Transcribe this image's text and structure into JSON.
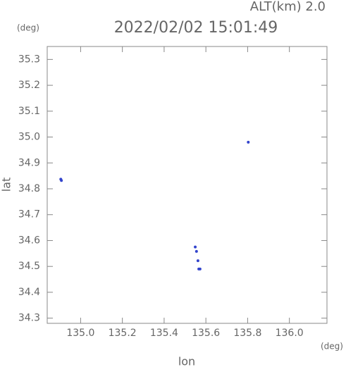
{
  "chart_data": {
    "type": "scatter",
    "title": "2022/02/02 15:01:49",
    "subtitle": "ALT(km) 2.0",
    "y_unit": "(deg)",
    "x_unit": "(deg)",
    "x_label": "lon",
    "y_label": "lat",
    "color": "#3344cc",
    "x": [
      134.905,
      134.908,
      135.803,
      135.549,
      135.555,
      135.562,
      135.566,
      135.572
    ],
    "values": [
      34.837,
      34.832,
      34.98,
      34.575,
      34.558,
      34.522,
      34.49,
      34.49
    ],
    "xlim": [
      134.84,
      136.18
    ],
    "ylim": [
      34.28,
      35.35
    ],
    "xticks": [
      {
        "value": 135,
        "label": "135.0"
      },
      135.2,
      135.4,
      135.6,
      135.8,
      {
        "value": 136,
        "label": "136.0"
      }
    ],
    "yticks": [
      35.3,
      35.2,
      35.1,
      {
        "value": 35,
        "label": "35.0"
      },
      34.9,
      34.8,
      34.7,
      34.6,
      34.5,
      34.4,
      34.3
    ]
  }
}
